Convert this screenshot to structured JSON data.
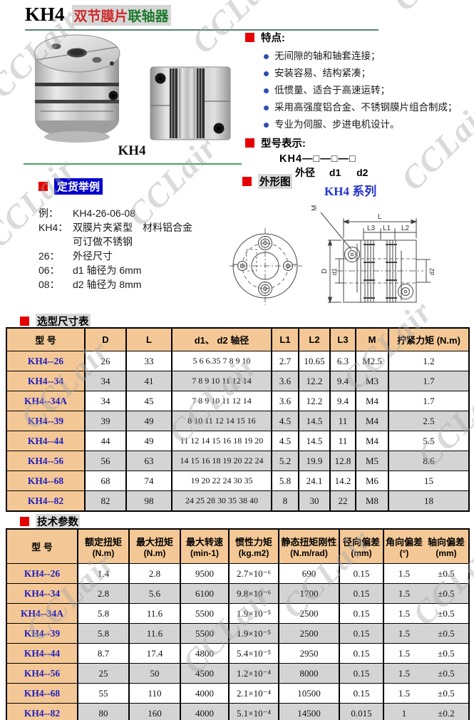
{
  "watermark": {
    "text": "CCLair"
  },
  "header": {
    "model": "KH4",
    "subtitle_red": "双节膜片",
    "subtitle_green": "联轴器"
  },
  "photos": {
    "caption": "KH4"
  },
  "features": {
    "heading": "特点:",
    "items": [
      "无间隙的轴和轴套连接；",
      "安装容易、结构紧凑；",
      "低惯量、适合于高速运转；",
      "采用高强度铝合金、不锈钢膜片组合制成；",
      "专业为伺服、步进电机设计。"
    ]
  },
  "model_notation": {
    "heading": "型号表示:",
    "pattern": "KH4—□—□—□",
    "labels": [
      "外径",
      "d1",
      "d2"
    ]
  },
  "ordering": {
    "heading": "定货举例",
    "lines": [
      {
        "label": "例：",
        "text": "KH4-26-06-08"
      },
      {
        "label": "KH4：",
        "text": "双膜片夹紧型　材料铝合金"
      },
      {
        "label": "",
        "text": "可订做不锈钢"
      },
      {
        "label": "26：",
        "text": "外径尺寸"
      },
      {
        "label": "06：",
        "text": "d1 轴径为 6mm"
      },
      {
        "label": "08：",
        "text": "d2 轴径为 8mm"
      }
    ]
  },
  "outline": {
    "heading": "外形图",
    "series_label": "KH4 系列",
    "dims": {
      "L": "L",
      "L1": "L1",
      "L2": "L2",
      "L3": "L3",
      "M": "M",
      "D": "D",
      "d1": "d1",
      "d2": "d2"
    }
  },
  "size_table": {
    "heading": "选型尺寸表",
    "columns": [
      "型  号",
      "D",
      "L",
      "d1、 d2 轴径",
      "L1",
      "L2",
      "L3",
      "M",
      "拧紧力矩 (N.m)"
    ],
    "rows": [
      [
        "KH4--26",
        "26",
        "33",
        "5 6 6.35 7 8 9 10",
        "2.7",
        "10.65",
        "6.3",
        "M2.5",
        "1.2"
      ],
      [
        "KH4--34",
        "34",
        "41",
        "7 8 9 10 11 12 14",
        "3.6",
        "12.2",
        "9.4",
        "M3",
        "1.7"
      ],
      [
        "KH4--34A",
        "34",
        "45",
        "7 8 9 10 11 12 14",
        "3.6",
        "12.2",
        "9.4",
        "M4",
        "1.7"
      ],
      [
        "KH4--39",
        "39",
        "49",
        "8 10 11 12 14 15 16",
        "4.5",
        "14.5",
        "11",
        "M4",
        "2.5"
      ],
      [
        "KH4--44",
        "44",
        "49",
        "11 12 14 15 16 18 19 20",
        "4.5",
        "14.5",
        "11",
        "M4",
        "5.5"
      ],
      [
        "KH4--56",
        "56",
        "63",
        "14 15 16 18 19 20 22 24",
        "5.2",
        "19.9",
        "12.8",
        "M5",
        "8.6"
      ],
      [
        "KH4--68",
        "68",
        "74",
        "19 20 22 24 30 35",
        "5.8",
        "24.1",
        "14.2",
        "M6",
        "15"
      ],
      [
        "KH4--82",
        "82",
        "98",
        "24 25 28 30 35 38 40",
        "8",
        "30",
        "22",
        "M8",
        "18"
      ]
    ]
  },
  "tech_table": {
    "heading": "技术参数",
    "columns": [
      {
        "label": "型  号",
        "unit": ""
      },
      {
        "label": "额定扭矩",
        "unit": "(N.m)"
      },
      {
        "label": "最大扭矩",
        "unit": "(N.m)"
      },
      {
        "label": "最大转速",
        "unit": "(min-1)"
      },
      {
        "label": "惯性力矩",
        "unit": "(kg.m2)"
      },
      {
        "label": "静态扭矩刚性",
        "unit": "(N.m/rad)"
      },
      {
        "label": "径向偏差",
        "unit": "(mm)"
      },
      {
        "label": "角向偏差",
        "unit": "(°)"
      },
      {
        "label": "轴向偏差",
        "unit": "(mm)"
      }
    ],
    "rows": [
      [
        "KH4--26",
        "1.4",
        "2.8",
        "9500",
        "2.7×10⁻⁶",
        "690",
        "0.15",
        "1.5",
        "±0.5"
      ],
      [
        "KH4--34",
        "2.8",
        "5.6",
        "6100",
        "9.8×10⁻⁶",
        "1700",
        "0.15",
        "1.5",
        "±0.5"
      ],
      [
        "KH4--34A",
        "5.8",
        "11.6",
        "5500",
        "1.9×10⁻⁵",
        "2500",
        "0.15",
        "1.5",
        "±0.5"
      ],
      [
        "KH4--39",
        "5.8",
        "11.6",
        "5500",
        "1.9×10⁻⁵",
        "2500",
        "0.15",
        "1.5",
        "±0.5"
      ],
      [
        "KH4--44",
        "8.7",
        "17.4",
        "4800",
        "5.4×10⁻⁵",
        "2950",
        "0.15",
        "1.5",
        "±0.5"
      ],
      [
        "KH4--56",
        "25",
        "50",
        "4500",
        "1.2×10⁻⁴",
        "8000",
        "0.15",
        "1.5",
        "±0.5"
      ],
      [
        "KH4--68",
        "55",
        "110",
        "4000",
        "2.1×10⁻⁴",
        "10500",
        "0.15",
        "1.5",
        "±0.5"
      ],
      [
        "KH4--82",
        "80",
        "160",
        "4000",
        "5.1×10⁻⁴",
        "14500",
        "0.015",
        "1",
        "±0.2"
      ]
    ]
  },
  "colors": {
    "table_header_bg": "#f4c896",
    "alt_row_bg": "#d4d4d4",
    "model_text_blue": "#1f1fbf",
    "accent_red": "#e40000",
    "ordering_bg_blue": "#0000cc",
    "series_blue": "#2233cc",
    "title_red": "#cf2b2b",
    "title_green": "#1d7a2c",
    "rule_teal": "#558273",
    "rule_green": "#47a065"
  }
}
